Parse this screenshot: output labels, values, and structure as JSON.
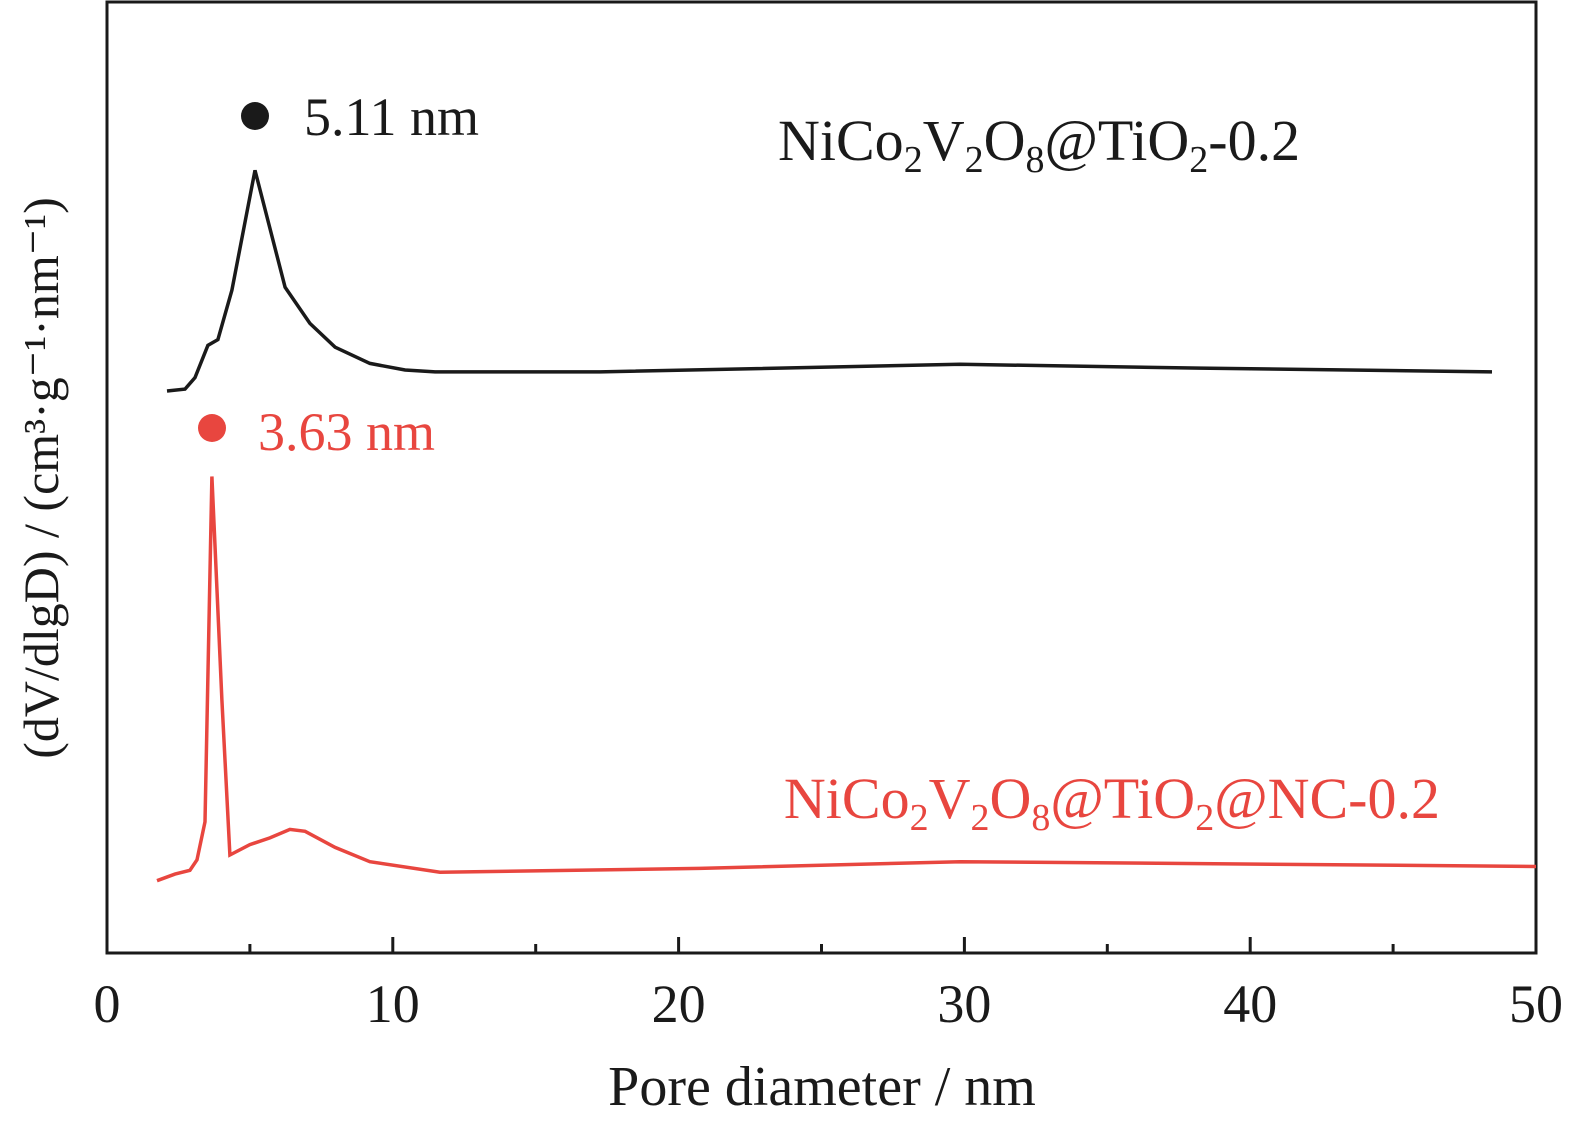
{
  "chart_data": {
    "type": "line",
    "title": "",
    "xlabel": "Pore diameter / nm",
    "ylabel": "(dV/dlgD)  / (cm³·g⁻¹·nm⁻¹)",
    "xlim": [
      0,
      50
    ],
    "ylim": [
      0,
      100
    ],
    "y_units": "arbitrary (no y tick labels shown)",
    "xticks": [
      0,
      10,
      20,
      30,
      40,
      50
    ],
    "xticks_minor": [
      5,
      15,
      25,
      35,
      45
    ],
    "grid": false,
    "series": [
      {
        "name": "NiCo2V2O8@TiO2-0.2",
        "label_parts": [
          [
            "NiCo",
            0
          ],
          [
            "2",
            1
          ],
          [
            "V",
            0
          ],
          [
            "2",
            1
          ],
          [
            "O",
            0
          ],
          [
            "8",
            1
          ],
          [
            "@TiO",
            0
          ],
          [
            "2",
            1
          ],
          [
            "-0.2",
            0
          ]
        ],
        "color": "#1a1a1a",
        "peak_label": "5.11 nm",
        "x": [
          2.1,
          2.73,
          3.08,
          3.53,
          3.88,
          4.37,
          5.18,
          6.23,
          7.1,
          7.98,
          9.2,
          10.43,
          11.48,
          17.25,
          29.85,
          38.24,
          48.46
        ],
        "y": [
          59.1,
          59.3,
          60.5,
          63.9,
          64.5,
          69.7,
          82.3,
          70.0,
          66.2,
          63.7,
          62.0,
          61.3,
          61.1,
          61.1,
          61.9,
          61.5,
          61.1
        ]
      },
      {
        "name": "NiCo2V2O8@TiO2@NC-0.2",
        "label_parts": [
          [
            "NiCo",
            0
          ],
          [
            "2",
            1
          ],
          [
            "V",
            0
          ],
          [
            "2",
            1
          ],
          [
            "O",
            0
          ],
          [
            "8",
            1
          ],
          [
            "@TiO",
            0
          ],
          [
            "2",
            1
          ],
          [
            "@NC-0.2",
            0
          ]
        ],
        "color": "#e8463f",
        "peak_label": "3.63 nm",
        "x": [
          1.75,
          2.38,
          2.9,
          3.15,
          3.43,
          3.67,
          4.02,
          4.3,
          5.0,
          5.7,
          6.4,
          6.93,
          7.98,
          9.2,
          11.65,
          20.75,
          29.85,
          38.24,
          50
        ],
        "y": [
          7.6,
          8.3,
          8.7,
          9.8,
          13.8,
          50.1,
          26.6,
          10.3,
          11.4,
          12.1,
          13.0,
          12.8,
          11.1,
          9.6,
          8.5,
          8.9,
          9.6,
          9.4,
          9.1
        ]
      }
    ]
  }
}
